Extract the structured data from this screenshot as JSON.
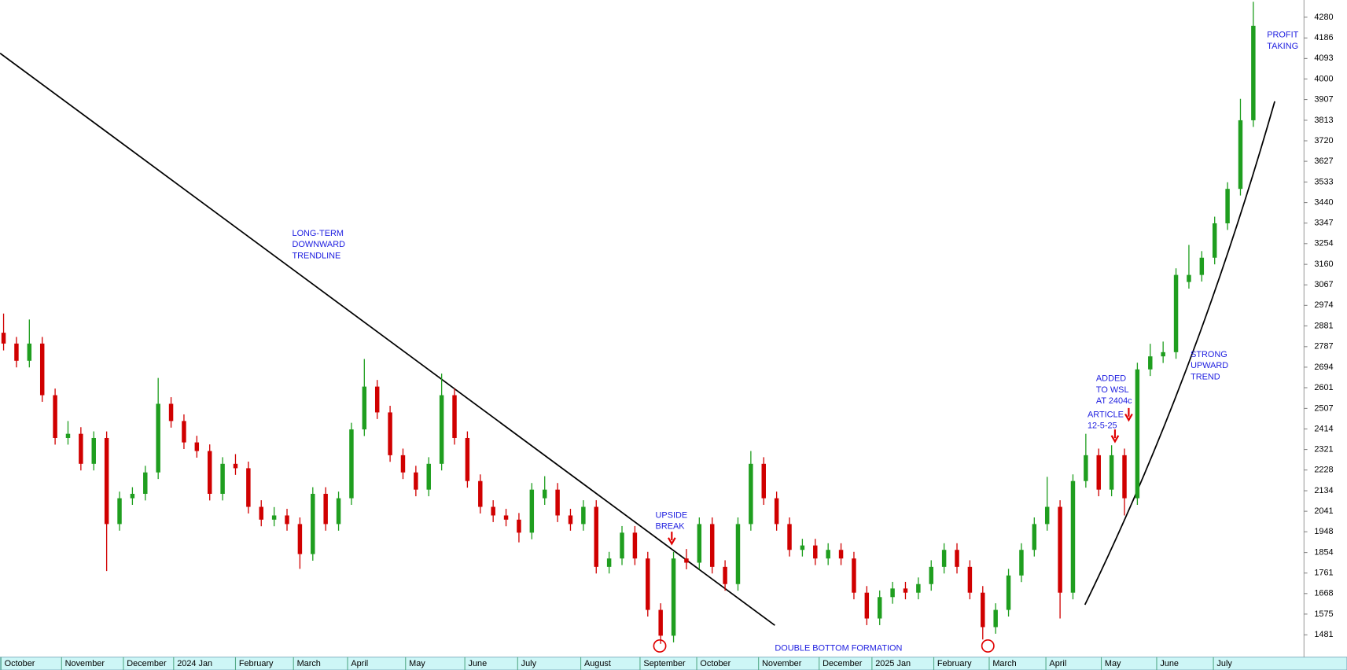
{
  "chart_data": {
    "type": "candlestick",
    "open": [
      2850,
      2801,
      2723,
      2801,
      2567,
      2373,
      2392,
      2256,
      2373,
      1983,
      2100,
      2120,
      2217,
      2528,
      2450,
      2353,
      2314,
      2120,
      2256,
      2236,
      2061,
      2003,
      2022,
      1983,
      1847,
      2120,
      1983,
      2100,
      2412,
      2606,
      2489,
      2295,
      2217,
      2139,
      2256,
      2567,
      2373,
      2178,
      2061,
      2022,
      2003,
      1944,
      2100,
      2139,
      2022,
      1983,
      2061,
      1789,
      1827,
      1944,
      1827,
      1594,
      1477,
      1827,
      1808,
      1983,
      1789,
      1711,
      1983,
      2256,
      2100,
      1983,
      1866,
      1886,
      1827,
      1866,
      1827,
      1672,
      1555,
      1652,
      1691,
      1672,
      1711,
      1789,
      1866,
      1789,
      1672,
      1516,
      1594,
      1750,
      1866,
      1983,
      2061,
      1672,
      2178,
      2295,
      2139,
      2295,
      2100,
      2684,
      2743,
      2762,
      3080,
      3112,
      3190,
      3346,
      3502,
      3813
    ],
    "high": [
      2937,
      2831,
      2910,
      2831,
      2597,
      2450,
      2422,
      2403,
      2403,
      2130,
      2150,
      2247,
      2645,
      2558,
      2480,
      2383,
      2344,
      2286,
      2300,
      2266,
      2091,
      2060,
      2052,
      2013,
      2150,
      2150,
      2130,
      2442,
      2731,
      2636,
      2519,
      2325,
      2247,
      2286,
      2665,
      2597,
      2403,
      2208,
      2091,
      2052,
      2033,
      2169,
      2200,
      2169,
      2052,
      2091,
      2091,
      1857,
      1974,
      1974,
      1857,
      1624,
      1857,
      1870,
      2013,
      2013,
      1819,
      2013,
      2314,
      2286,
      2130,
      2013,
      1916,
      1916,
      1896,
      1896,
      1857,
      1702,
      1682,
      1721,
      1721,
      1741,
      1819,
      1896,
      1896,
      1819,
      1702,
      1624,
      1780,
      1896,
      2013,
      2197,
      2091,
      2208,
      2392,
      2325,
      2340,
      2325,
      2714,
      2800,
      2810,
      3142,
      3248,
      3220,
      3376,
      3532,
      3910,
      4350
    ],
    "low": [
      2770,
      2693,
      2693,
      2537,
      2343,
      2343,
      2226,
      2226,
      1770,
      1953,
      2070,
      2090,
      2187,
      2420,
      2323,
      2284,
      2090,
      2090,
      2206,
      2031,
      1973,
      1973,
      1953,
      1780,
      1817,
      1953,
      1953,
      2070,
      2382,
      2459,
      2265,
      2187,
      2109,
      2109,
      2226,
      2343,
      2148,
      2031,
      1992,
      1973,
      1900,
      1914,
      2070,
      1992,
      1953,
      1953,
      1759,
      1759,
      1797,
      1797,
      1564,
      1440,
      1447,
      1778,
      1778,
      1759,
      1681,
      1681,
      1953,
      2070,
      1953,
      1836,
      1836,
      1797,
      1797,
      1797,
      1642,
      1525,
      1525,
      1622,
      1642,
      1642,
      1681,
      1759,
      1759,
      1642,
      1460,
      1486,
      1564,
      1720,
      1836,
      1953,
      1555,
      1642,
      2148,
      2109,
      2109,
      2022,
      2070,
      2654,
      2713,
      2732,
      3050,
      3082,
      3160,
      3316,
      3472,
      3783
    ],
    "close": [
      2801,
      2723,
      2801,
      2567,
      2373,
      2392,
      2256,
      2373,
      1983,
      2100,
      2120,
      2217,
      2528,
      2450,
      2353,
      2314,
      2120,
      2256,
      2236,
      2061,
      2003,
      2022,
      1983,
      1847,
      2120,
      1983,
      2100,
      2412,
      2606,
      2489,
      2295,
      2217,
      2139,
      2256,
      2567,
      2373,
      2178,
      2061,
      2022,
      2003,
      1944,
      2139,
      2139,
      2022,
      1983,
      2061,
      1789,
      1827,
      1944,
      1827,
      1594,
      1477,
      1827,
      1808,
      1983,
      1789,
      1711,
      1983,
      2256,
      2100,
      1983,
      1866,
      1886,
      1827,
      1866,
      1827,
      1672,
      1555,
      1652,
      1691,
      1672,
      1711,
      1789,
      1866,
      1789,
      1672,
      1516,
      1594,
      1750,
      1866,
      1983,
      2061,
      1672,
      2178,
      2295,
      2139,
      2295,
      2100,
      2684,
      2743,
      2762,
      3112,
      3112,
      3190,
      3346,
      3502,
      3813,
      4241
    ],
    "up_color": "#1f9e1f",
    "down_color": "#d00000",
    "ylim": [
      1380,
      4358
    ],
    "yticks": [
      1481,
      1575,
      1668,
      1761,
      1854,
      1948,
      2041,
      2134,
      2228,
      2321,
      2414,
      2507,
      2601,
      2694,
      2787,
      2881,
      2974,
      3067,
      3160,
      3254,
      3347,
      3440,
      3533,
      3627,
      3720,
      3813,
      3907,
      4000,
      4093,
      4186,
      4280
    ],
    "y_axis_side": "right",
    "xlim": [
      -0.27,
      100.93
    ],
    "xticks": [
      {
        "value": -0.2,
        "label": "October"
      },
      {
        "value": 4.5,
        "label": "November"
      },
      {
        "value": 9.3,
        "label": "December"
      },
      {
        "value": 13.2,
        "label": "2024 Jan"
      },
      {
        "value": 18,
        "label": "February"
      },
      {
        "value": 22.5,
        "label": "March"
      },
      {
        "value": 26.7,
        "label": "April"
      },
      {
        "value": 31.2,
        "label": "May"
      },
      {
        "value": 35.8,
        "label": "June"
      },
      {
        "value": 39.9,
        "label": "July"
      },
      {
        "value": 44.8,
        "label": "August"
      },
      {
        "value": 49.4,
        "label": "September"
      },
      {
        "value": 53.8,
        "label": "October"
      },
      {
        "value": 58.6,
        "label": "November"
      },
      {
        "value": 63.3,
        "label": "December"
      },
      {
        "value": 67.4,
        "label": "2025 Jan"
      },
      {
        "value": 72.2,
        "label": "February"
      },
      {
        "value": 76.5,
        "label": "March"
      },
      {
        "value": 80.9,
        "label": "April"
      },
      {
        "value": 85.2,
        "label": "May"
      },
      {
        "value": 89.5,
        "label": "June"
      },
      {
        "value": 93.9,
        "label": "July"
      }
    ],
    "annotations": [
      {
        "lines": [
          "LONG-TERM",
          "DOWNWARD",
          "TRENDLINE"
        ]
      },
      {
        "lines": [
          "UPSIDE",
          "BREAK"
        ]
      },
      {
        "lines": [
          "DOUBLE BOTTOM FORMATION"
        ]
      },
      {
        "lines": [
          "ARTICLE",
          "12-5-25"
        ]
      },
      {
        "lines": [
          "ADDED",
          "TO WSL",
          "AT 2404c"
        ]
      },
      {
        "lines": [
          "STRONG",
          "UPWARD",
          "TREND"
        ]
      },
      {
        "lines": [
          "PROFIT",
          "TAKING"
        ]
      }
    ]
  }
}
